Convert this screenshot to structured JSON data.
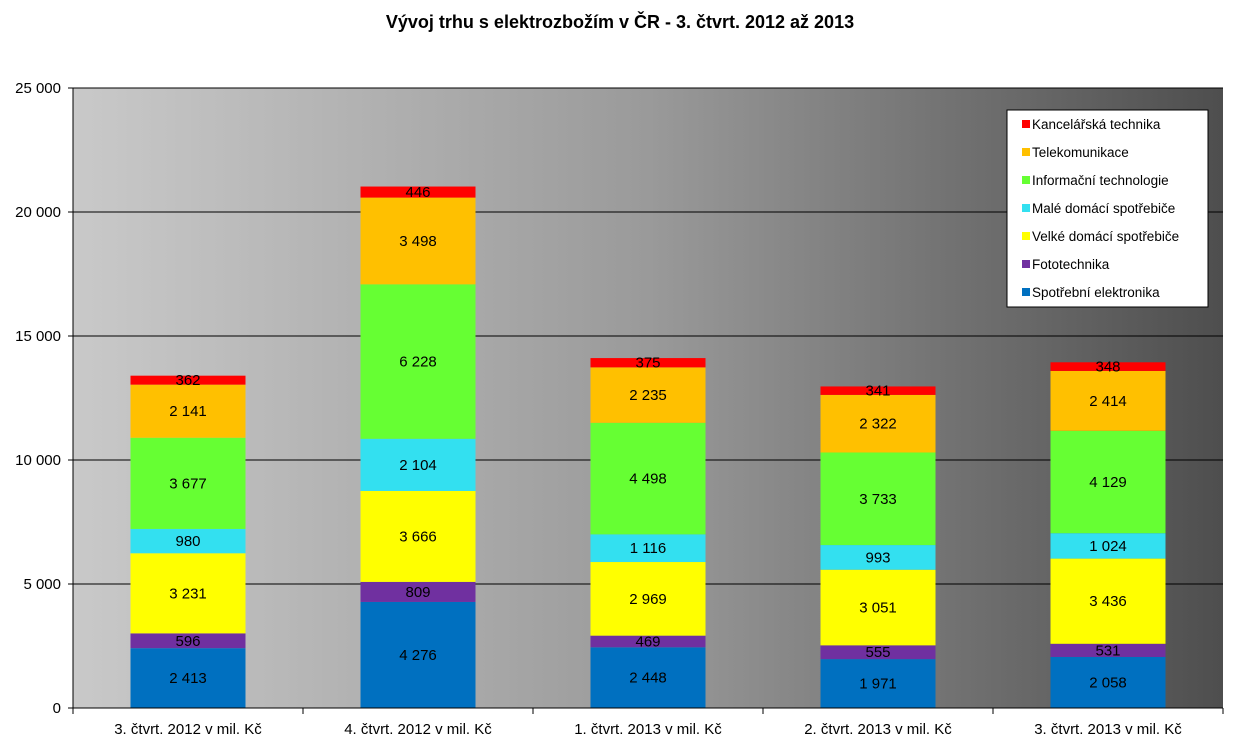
{
  "chart_data": {
    "type": "bar",
    "stacked": true,
    "title": "Vývoj trhu s elektrozbožím v ČR - 3. čtvrt. 2012 až 2013",
    "xlabel": "",
    "ylabel": "",
    "ylim": [
      0,
      25000
    ],
    "yticks": [
      0,
      5000,
      10000,
      15000,
      20000,
      25000
    ],
    "ytick_labels": [
      "0",
      "5 000",
      "10 000",
      "15 000",
      "20 000",
      "25 000"
    ],
    "grid": true,
    "legend_position": "top-right",
    "categories": [
      "3. čtvrt. 2012 v mil. Kč",
      "4. čtvrt. 2012 v mil. Kč",
      "1. čtvrt. 2013 v mil. Kč",
      "2. čtvrt. 2013 v mil. Kč",
      "3. čtvrt. 2013 v mil. Kč"
    ],
    "series": [
      {
        "name": "Spotřební elektronika",
        "color": "#0070C0",
        "values": [
          2413,
          4276,
          2448,
          1971,
          2058
        ],
        "labels": [
          "2 413",
          "4 276",
          "2 448",
          "1 971",
          "2 058"
        ]
      },
      {
        "name": "Fototechnika",
        "color": "#7030A0",
        "values": [
          596,
          809,
          469,
          555,
          531
        ],
        "labels": [
          "596",
          "809",
          "469",
          "555",
          "531"
        ]
      },
      {
        "name": "Velké domácí spotřebiče",
        "color": "#FFFF00",
        "values": [
          3231,
          3666,
          2969,
          3051,
          3436
        ],
        "labels": [
          "3 231",
          "3 666",
          "2 969",
          "3 051",
          "3 436"
        ]
      },
      {
        "name": "Malé domácí spotřebiče",
        "color": "#33E0F0",
        "values": [
          980,
          2104,
          1116,
          993,
          1024
        ],
        "labels": [
          "980",
          "2 104",
          "1 116",
          "993",
          "1 024"
        ]
      },
      {
        "name": "Informační technologie",
        "color": "#66FF33",
        "values": [
          3677,
          6228,
          4498,
          3733,
          4129
        ],
        "labels": [
          "3 677",
          "6 228",
          "4 498",
          "3 733",
          "4 129"
        ]
      },
      {
        "name": "Telekomunikace",
        "color": "#FFC000",
        "values": [
          2141,
          3498,
          2235,
          2322,
          2414
        ],
        "labels": [
          "2 141",
          "3 498",
          "2 235",
          "2 322",
          "2 414"
        ]
      },
      {
        "name": "Kancelářská technika",
        "color": "#FF0000",
        "values": [
          362,
          446,
          375,
          341,
          348
        ],
        "labels": [
          "362",
          "446",
          "375",
          "341",
          "348"
        ]
      }
    ]
  }
}
